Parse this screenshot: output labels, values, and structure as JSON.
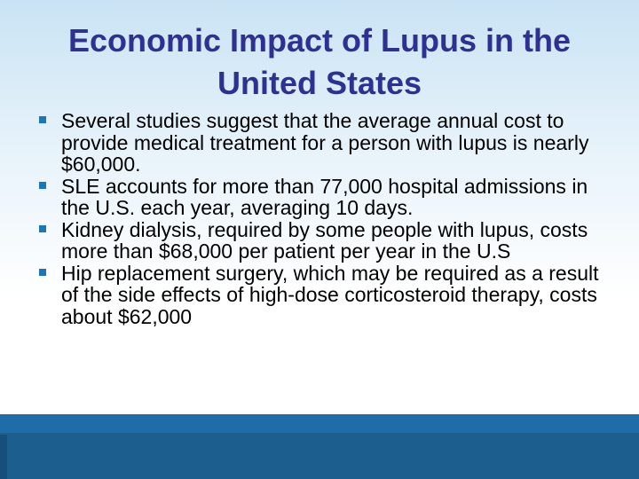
{
  "slide": {
    "title": "Economic Impact of Lupus in the United States",
    "bullets": [
      "Several studies suggest that the average annual cost to provide medical treatment for a person with lupus is nearly $60,000.",
      "SLE accounts for more than 77,000 hospital admissions in the U.S. each year, averaging 10 days.",
      "Kidney dialysis, required by some people with lupus, costs more than $68,000 per patient per year in the U.S",
      "Hip replacement surgery, which may be required as a result of the side effects of high-dose corticosteroid therapy, costs about $62,000"
    ],
    "colors": {
      "title": "#2e3192",
      "bullet_marker": "#1b75bb",
      "footer": "#1c5f8f"
    }
  }
}
